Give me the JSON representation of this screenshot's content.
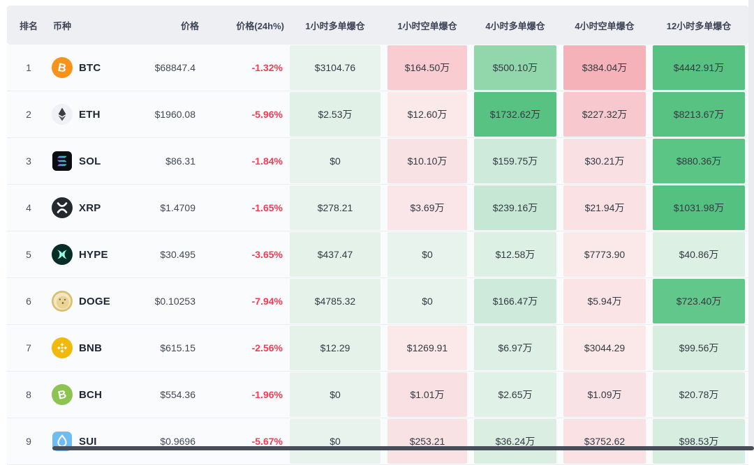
{
  "table": {
    "title": "crypto-liquidation-heatmap-table",
    "columns": [
      {
        "key": "rank",
        "label": "排名"
      },
      {
        "key": "coin",
        "label": "币种"
      },
      {
        "key": "price",
        "label": "价格"
      },
      {
        "key": "change_24h",
        "label": "价格(24h%)"
      },
      {
        "key": "liq_1h_long",
        "label": "1小时多单爆仓"
      },
      {
        "key": "liq_1h_short",
        "label": "1小时空单爆仓"
      },
      {
        "key": "liq_4h_long",
        "label": "4小时多单爆仓"
      },
      {
        "key": "liq_4h_short",
        "label": "4小时空单爆仓"
      },
      {
        "key": "liq_12h_long",
        "label": "12小时多单爆仓"
      }
    ],
    "rows": [
      {
        "rank": "1",
        "symbol": "BTC",
        "icon": "btc-icon",
        "price": "$68847.4",
        "change": "-1.32%",
        "cells": [
          {
            "v": "$3104.76",
            "bg": "#e7f3ec"
          },
          {
            "v": "$164.50万",
            "bg": "#f8ccd1"
          },
          {
            "v": "$500.10万",
            "bg": "#92d6ab"
          },
          {
            "v": "$384.04万",
            "bg": "#f5b2b9"
          },
          {
            "v": "$4442.91万",
            "bg": "#57c282"
          }
        ]
      },
      {
        "rank": "2",
        "symbol": "ETH",
        "icon": "eth-icon",
        "price": "$1960.08",
        "change": "-5.96%",
        "cells": [
          {
            "v": "$2.53万",
            "bg": "#e2f1e8"
          },
          {
            "v": "$12.60万",
            "bg": "#fbe9ea"
          },
          {
            "v": "$1732.62万",
            "bg": "#57c282"
          },
          {
            "v": "$227.32万",
            "bg": "#f7c9ce"
          },
          {
            "v": "$8213.67万",
            "bg": "#57c282"
          }
        ]
      },
      {
        "rank": "3",
        "symbol": "SOL",
        "icon": "sol-icon",
        "price": "$86.31",
        "change": "-1.84%",
        "cells": [
          {
            "v": "$0",
            "bg": "#e7f3ec"
          },
          {
            "v": "$10.10万",
            "bg": "#f9e2e4"
          },
          {
            "v": "$159.75万",
            "bg": "#cdeada"
          },
          {
            "v": "$30.21万",
            "bg": "#f9e0e3"
          },
          {
            "v": "$880.36万",
            "bg": "#5ac584"
          }
        ]
      },
      {
        "rank": "4",
        "symbol": "XRP",
        "icon": "xrp-icon",
        "price": "$1.4709",
        "change": "-1.65%",
        "cells": [
          {
            "v": "$278.21",
            "bg": "#e7f3ec"
          },
          {
            "v": "$3.69万",
            "bg": "#fae6e8"
          },
          {
            "v": "$239.16万",
            "bg": "#c6e7d3"
          },
          {
            "v": "$21.94万",
            "bg": "#f9e1e4"
          },
          {
            "v": "$1031.98万",
            "bg": "#55c180"
          }
        ]
      },
      {
        "rank": "5",
        "symbol": "HYPE",
        "icon": "hype-icon",
        "price": "$30.495",
        "change": "-3.65%",
        "cells": [
          {
            "v": "$437.47",
            "bg": "#e5f2ea"
          },
          {
            "v": "$0",
            "bg": "#e7f3ec"
          },
          {
            "v": "$12.58万",
            "bg": "#ddf0e4"
          },
          {
            "v": "$7773.90",
            "bg": "#fbe9ea"
          },
          {
            "v": "$40.86万",
            "bg": "#ddf0e4"
          }
        ]
      },
      {
        "rank": "6",
        "symbol": "DOGE",
        "icon": "doge-icon",
        "price": "$0.10253",
        "change": "-7.94%",
        "cells": [
          {
            "v": "$4785.32",
            "bg": "#e5f2ea"
          },
          {
            "v": "$0",
            "bg": "#e7f3ec"
          },
          {
            "v": "$166.47万",
            "bg": "#cdeada"
          },
          {
            "v": "$5.94万",
            "bg": "#fae4e6"
          },
          {
            "v": "$723.40万",
            "bg": "#62c78a"
          }
        ]
      },
      {
        "rank": "7",
        "symbol": "BNB",
        "icon": "bnb-icon",
        "price": "$615.15",
        "change": "-2.56%",
        "cells": [
          {
            "v": "$12.29",
            "bg": "#e5f2ea"
          },
          {
            "v": "$1269.91",
            "bg": "#fbe9ea"
          },
          {
            "v": "$6.97万",
            "bg": "#def0e5"
          },
          {
            "v": "$3044.29",
            "bg": "#fbe9ea"
          },
          {
            "v": "$99.56万",
            "bg": "#d6eddf"
          }
        ]
      },
      {
        "rank": "8",
        "symbol": "BCH",
        "icon": "bch-icon",
        "price": "$554.36",
        "change": "-1.96%",
        "cells": [
          {
            "v": "$0",
            "bg": "#e7f3ec"
          },
          {
            "v": "$1.01万",
            "bg": "#f9e0e3"
          },
          {
            "v": "$2.65万",
            "bg": "#e0f1e7"
          },
          {
            "v": "$1.09万",
            "bg": "#f9e2e5"
          },
          {
            "v": "$20.78万",
            "bg": "#def0e5"
          }
        ]
      },
      {
        "rank": "9",
        "symbol": "SUI",
        "icon": "sui-icon",
        "price": "$0.9696",
        "change": "-5.67%",
        "cells": [
          {
            "v": "$0",
            "bg": "#e7f3ec"
          },
          {
            "v": "$253.21",
            "bg": "#f9e2e4"
          },
          {
            "v": "$36.24万",
            "bg": "#daeee2"
          },
          {
            "v": "$3752.62",
            "bg": "#f9e1e4"
          },
          {
            "v": "$98.53万",
            "bg": "#d6eddf"
          }
        ]
      }
    ]
  },
  "colors": {
    "negative": "#f43b54",
    "header_bg": "#edeff3",
    "row_bg": "#fafbfc",
    "green_strong": "#57c282",
    "green_light": "#e7f3ec",
    "red_strong": "#f5b2b9",
    "red_light": "#fbe9ea",
    "unit_suffix": "万"
  },
  "scrollbars": {
    "vertical_track": "right-edge",
    "horizontal_thumb": "bottom-edge"
  }
}
